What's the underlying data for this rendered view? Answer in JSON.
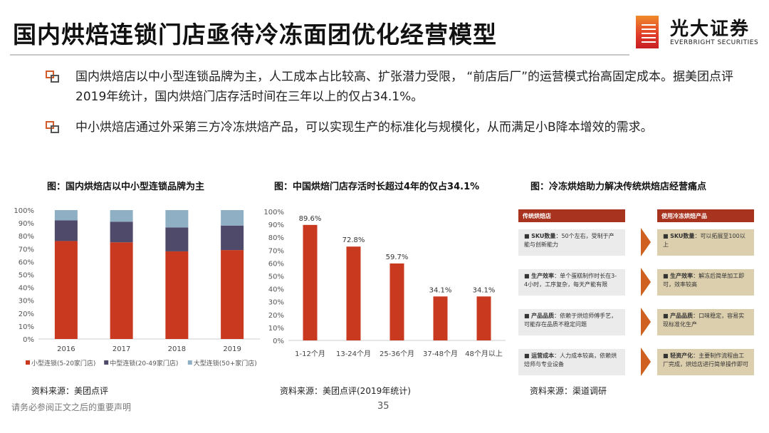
{
  "title": "国内烘焙连锁门店亟待冷冻面团优化经营模型",
  "logo": {
    "cn": "光大证券",
    "en": "EVERBRIGHT SECURITIES"
  },
  "bullets": [
    "国内烘焙店以中小型连锁品牌为主，人工成本占比较高、扩张潜力受限，  “前店后厂”的运营模式抬高固定成本。据美团点评2019年统计，国内烘焙门店存活时间在三年以上的仅占34.1%。",
    "中小烘焙店通过外采第三方冷冻烘焙产品，可以实现生产的标准化与规模化，从而满足小B降本增效的需求。"
  ],
  "chart_data": [
    {
      "type": "bar",
      "stacked": true,
      "title": "图：国内烘焙店以中小型连锁品牌为主",
      "categories": [
        "2016",
        "2017",
        "2018",
        "2019"
      ],
      "series": [
        {
          "name": "小型连锁(5-20家门店)",
          "color": "#c8391f",
          "values": [
            76,
            75,
            68,
            69
          ]
        },
        {
          "name": "中型连锁(20-49家门店)",
          "color": "#4f4a6a",
          "values": [
            16,
            16,
            18.5,
            19
          ]
        },
        {
          "name": "大型连锁(50+家门店)",
          "color": "#8fb0c4",
          "values": [
            8,
            9,
            13.5,
            12
          ]
        }
      ],
      "ylim": [
        0,
        100
      ],
      "yticks": [
        "0%",
        "10%",
        "20%",
        "30%",
        "40%",
        "50%",
        "60%",
        "70%",
        "80%",
        "90%",
        "100%"
      ],
      "legend": "bottom"
    },
    {
      "type": "bar",
      "title": "图：中国烘焙门店存活时长超过4年的仅占34.1%",
      "categories": [
        "1-12个月",
        "13-24个月",
        "25-36个月",
        "37-48个月",
        "48个月以上"
      ],
      "values": [
        89.6,
        72.8,
        59.7,
        34.1,
        34.1
      ],
      "labels": [
        "89.6%",
        "72.8%",
        "59.7%",
        "34.1%",
        "34.1%"
      ],
      "color": "#c8391f",
      "ylim": [
        0,
        100
      ],
      "yticks": [
        "0%",
        "10%",
        "20%",
        "30%",
        "40%",
        "50%",
        "60%",
        "70%",
        "80%",
        "90%",
        "100%"
      ]
    }
  ],
  "diagram": {
    "title": "图：冷冻烘焙助力解决传统烘焙店经营痛点",
    "left_header": "传统烘焙店",
    "right_header": "使用冷冻烘焙产品",
    "rows": [
      {
        "lk": "SKU数量",
        "lv": "50个左右，受制于产能与创新能力",
        "rk": "SKU数量",
        "rv": "可以拓展至100以上"
      },
      {
        "lk": "生产效率",
        "lv": "单个蛋糕制作时长在3-4小时，工序复杂，每天产能有限",
        "rk": "生产效率",
        "rv": "解冻后简单加工即可，效率较高"
      },
      {
        "lk": "产品品质",
        "lv": "依赖于烘焙师傅手艺，可能存在品质不稳定问题",
        "rk": "产品品质",
        "rv": "口味稳定，容易实现标准化生产"
      },
      {
        "lk": "运营成本",
        "lv": "人力成本较高，依赖烘焙师与专业设备",
        "rk": "轻资产化",
        "rv": "主要制作流程由工厂完成，烘焙店进行简单操作即可"
      }
    ]
  },
  "sources": [
    "资料来源：美团点评",
    "资料来源：美团点评(2019年统计)",
    "资料来源：渠道调研"
  ],
  "footer": "请务必参阅正文之后的重要声明",
  "page": "35"
}
